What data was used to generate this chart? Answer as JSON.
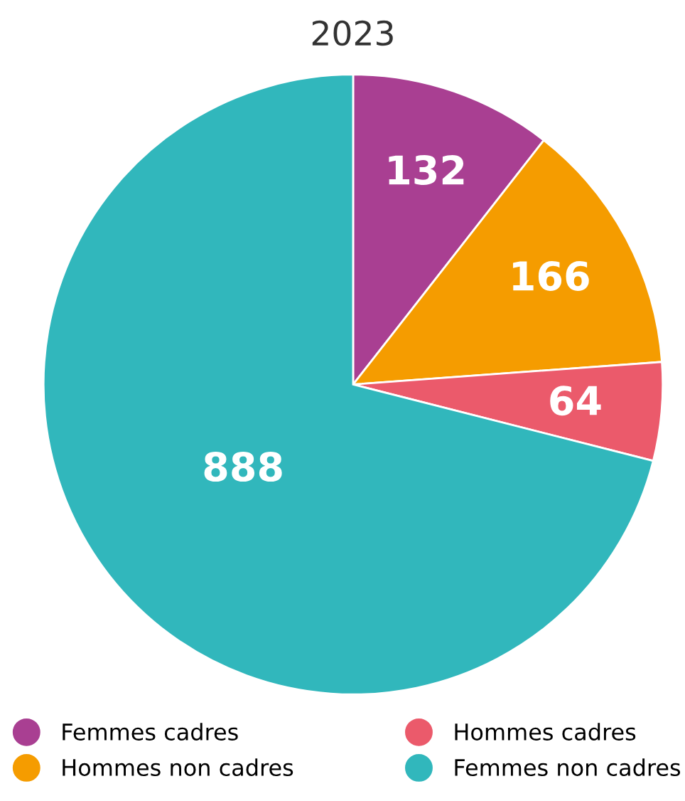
{
  "chart_data": {
    "type": "pie",
    "title": "2023",
    "categories": [
      "Femmes cadres",
      "Hommes non cadres",
      "Hommes cadres",
      "Femmes non cadres"
    ],
    "values": [
      132,
      166,
      64,
      888
    ],
    "colors": [
      "#a93f92",
      "#f59c00",
      "#eb5a6b",
      "#31b7bc"
    ],
    "data_labels": true,
    "legend": "bottom"
  }
}
